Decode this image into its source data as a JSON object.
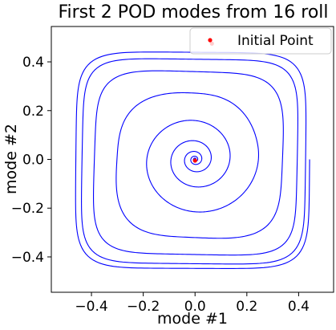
{
  "chart_data": {
    "type": "line",
    "title": "First 2 POD modes from 16 roll",
    "xlabel": "mode #1",
    "ylabel": "mode #2",
    "xlim": [
      -0.555,
      0.535
    ],
    "ylim": [
      -0.545,
      0.545
    ],
    "xticks": [
      {
        "value": -0.4,
        "label": "−0.4"
      },
      {
        "value": -0.2,
        "label": "−0.2"
      },
      {
        "value": 0.0,
        "label": "0.0"
      },
      {
        "value": 0.2,
        "label": "0.2"
      },
      {
        "value": 0.4,
        "label": "0.4"
      }
    ],
    "yticks": [
      {
        "value": -0.4,
        "label": "−0.4"
      },
      {
        "value": -0.2,
        "label": "−0.2"
      },
      {
        "value": 0.0,
        "label": "0.0"
      },
      {
        "value": 0.2,
        "label": "0.2"
      },
      {
        "value": 0.4,
        "label": "0.4"
      }
    ],
    "grid": false,
    "legend_position": "top-right",
    "series": [
      {
        "kind": "trajectory",
        "color": "#0000ff",
        "description_of_shape": "spiral from origin outward to a limit cycle",
        "spiral": {
          "start_radius": 0.004,
          "initial_growth_per_turn": 2.6,
          "limit_radius": 0.5,
          "turns": 9,
          "squareness": 6
        }
      },
      {
        "name": "Initial Point",
        "kind": "marker",
        "color": "#ff0000",
        "x": [
          0.065
        ],
        "y": [
          0.475
        ]
      },
      {
        "kind": "marker",
        "color": "#ff0000",
        "x": [
          0.0
        ],
        "y": [
          -0.005
        ]
      }
    ]
  }
}
